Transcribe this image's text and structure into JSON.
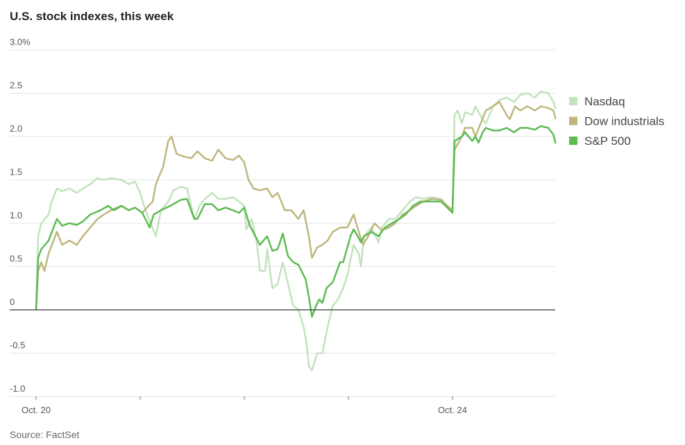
{
  "chart_data": {
    "type": "line",
    "title": "U.S. stock indexes, this week",
    "source": "Source: FactSet",
    "xlabel": "",
    "ylabel": "",
    "xlim": [
      0,
      5
    ],
    "ylim": [
      -1.0,
      3.0
    ],
    "x_unit": "trading days since Oct. 20 open",
    "x_ticks": [
      {
        "value": 0,
        "label": "Oct. 20"
      },
      {
        "value": 1,
        "label": ""
      },
      {
        "value": 2,
        "label": ""
      },
      {
        "value": 3,
        "label": ""
      },
      {
        "value": 4,
        "label": "Oct. 24"
      }
    ],
    "y_ticks": [
      {
        "value": 3.0,
        "label": "3.0%"
      },
      {
        "value": 2.5,
        "label": "2.5"
      },
      {
        "value": 2.0,
        "label": "2.0"
      },
      {
        "value": 1.5,
        "label": "1.5"
      },
      {
        "value": 1.0,
        "label": "1.0"
      },
      {
        "value": 0.5,
        "label": "0.5"
      },
      {
        "value": 0,
        "label": "0"
      },
      {
        "value": -0.5,
        "label": "-0.5"
      },
      {
        "value": -1.0,
        "label": "-1.0"
      }
    ],
    "grid": true,
    "legend_position": "right",
    "series": [
      {
        "name": "Nasdaq",
        "color": "#c2e3bd",
        "points": [
          [
            0,
            0
          ],
          [
            0.02,
            0.85
          ],
          [
            0.05,
            1.0
          ],
          [
            0.12,
            1.1
          ],
          [
            0.15,
            1.25
          ],
          [
            0.2,
            1.4
          ],
          [
            0.25,
            1.37
          ],
          [
            0.32,
            1.4
          ],
          [
            0.39,
            1.35
          ],
          [
            0.45,
            1.4
          ],
          [
            0.52,
            1.45
          ],
          [
            0.59,
            1.52
          ],
          [
            0.65,
            1.5
          ],
          [
            0.72,
            1.52
          ],
          [
            0.82,
            1.5
          ],
          [
            0.89,
            1.45
          ],
          [
            0.95,
            1.48
          ],
          [
            1.0,
            1.35
          ],
          [
            1.05,
            1.15
          ],
          [
            1.1,
            1.0
          ],
          [
            1.15,
            0.85
          ],
          [
            1.2,
            1.15
          ],
          [
            1.27,
            1.25
          ],
          [
            1.32,
            1.38
          ],
          [
            1.39,
            1.42
          ],
          [
            1.45,
            1.4
          ],
          [
            1.52,
            1.05
          ],
          [
            1.57,
            1.2
          ],
          [
            1.62,
            1.28
          ],
          [
            1.69,
            1.35
          ],
          [
            1.75,
            1.28
          ],
          [
            1.82,
            1.28
          ],
          [
            1.89,
            1.3
          ],
          [
            1.95,
            1.25
          ],
          [
            2.0,
            1.2
          ],
          [
            2.02,
            0.93
          ],
          [
            2.07,
            1.05
          ],
          [
            2.12,
            0.78
          ],
          [
            2.15,
            0.45
          ],
          [
            2.2,
            0.45
          ],
          [
            2.22,
            0.7
          ],
          [
            2.27,
            0.25
          ],
          [
            2.32,
            0.3
          ],
          [
            2.37,
            0.55
          ],
          [
            2.42,
            0.3
          ],
          [
            2.47,
            0.05
          ],
          [
            2.52,
            0.0
          ],
          [
            2.57,
            -0.2
          ],
          [
            2.6,
            -0.4
          ],
          [
            2.62,
            -0.65
          ],
          [
            2.65,
            -0.7
          ],
          [
            2.7,
            -0.5
          ],
          [
            2.75,
            -0.5
          ],
          [
            2.8,
            -0.2
          ],
          [
            2.85,
            0.05
          ],
          [
            2.89,
            0.1
          ],
          [
            2.95,
            0.25
          ],
          [
            2.99,
            0.4
          ],
          [
            3.05,
            0.75
          ],
          [
            3.1,
            0.65
          ],
          [
            3.12,
            0.5
          ],
          [
            3.15,
            0.85
          ],
          [
            3.22,
            0.95
          ],
          [
            3.29,
            0.78
          ],
          [
            3.32,
            0.95
          ],
          [
            3.39,
            1.05
          ],
          [
            3.45,
            1.05
          ],
          [
            3.52,
            1.15
          ],
          [
            3.59,
            1.25
          ],
          [
            3.65,
            1.3
          ],
          [
            3.72,
            1.28
          ],
          [
            3.8,
            1.3
          ],
          [
            3.89,
            1.28
          ],
          [
            3.95,
            1.2
          ],
          [
            4.0,
            1.15
          ],
          [
            4.02,
            2.25
          ],
          [
            4.05,
            2.3
          ],
          [
            4.09,
            2.15
          ],
          [
            4.12,
            2.28
          ],
          [
            4.19,
            2.25
          ],
          [
            4.22,
            2.35
          ],
          [
            4.29,
            2.2
          ],
          [
            4.32,
            2.15
          ],
          [
            4.39,
            2.35
          ],
          [
            4.45,
            2.42
          ],
          [
            4.52,
            2.45
          ],
          [
            4.59,
            2.4
          ],
          [
            4.65,
            2.48
          ],
          [
            4.72,
            2.5
          ],
          [
            4.79,
            2.45
          ],
          [
            4.85,
            2.52
          ],
          [
            4.92,
            2.5
          ],
          [
            4.97,
            2.4
          ],
          [
            4.99,
            2.32
          ]
        ]
      },
      {
        "name": "Dow industrials",
        "color": "#bfb67e",
        "points": [
          [
            0,
            0
          ],
          [
            0.02,
            0.45
          ],
          [
            0.05,
            0.55
          ],
          [
            0.08,
            0.45
          ],
          [
            0.12,
            0.65
          ],
          [
            0.2,
            0.9
          ],
          [
            0.25,
            0.75
          ],
          [
            0.32,
            0.8
          ],
          [
            0.39,
            0.75
          ],
          [
            0.45,
            0.85
          ],
          [
            0.52,
            0.95
          ],
          [
            0.59,
            1.05
          ],
          [
            0.65,
            1.1
          ],
          [
            0.72,
            1.15
          ],
          [
            0.82,
            1.2
          ],
          [
            0.89,
            1.15
          ],
          [
            0.95,
            1.18
          ],
          [
            1.02,
            1.12
          ],
          [
            1.08,
            1.2
          ],
          [
            1.12,
            1.25
          ],
          [
            1.15,
            1.45
          ],
          [
            1.22,
            1.65
          ],
          [
            1.27,
            1.95
          ],
          [
            1.3,
            2.0
          ],
          [
            1.35,
            1.8
          ],
          [
            1.42,
            1.77
          ],
          [
            1.49,
            1.75
          ],
          [
            1.55,
            1.83
          ],
          [
            1.62,
            1.75
          ],
          [
            1.69,
            1.72
          ],
          [
            1.75,
            1.85
          ],
          [
            1.82,
            1.75
          ],
          [
            1.89,
            1.73
          ],
          [
            1.95,
            1.78
          ],
          [
            2.0,
            1.7
          ],
          [
            2.04,
            1.5
          ],
          [
            2.09,
            1.4
          ],
          [
            2.15,
            1.38
          ],
          [
            2.22,
            1.4
          ],
          [
            2.27,
            1.3
          ],
          [
            2.32,
            1.35
          ],
          [
            2.39,
            1.15
          ],
          [
            2.45,
            1.15
          ],
          [
            2.52,
            1.05
          ],
          [
            2.57,
            1.15
          ],
          [
            2.62,
            0.85
          ],
          [
            2.65,
            0.6
          ],
          [
            2.7,
            0.72
          ],
          [
            2.75,
            0.75
          ],
          [
            2.8,
            0.8
          ],
          [
            2.85,
            0.9
          ],
          [
            2.92,
            0.95
          ],
          [
            2.99,
            0.95
          ],
          [
            3.05,
            1.1
          ],
          [
            3.1,
            0.9
          ],
          [
            3.14,
            0.75
          ],
          [
            3.19,
            0.85
          ],
          [
            3.25,
            1.0
          ],
          [
            3.32,
            0.92
          ],
          [
            3.39,
            0.95
          ],
          [
            3.45,
            1.0
          ],
          [
            3.52,
            1.1
          ],
          [
            3.59,
            1.15
          ],
          [
            3.65,
            1.2
          ],
          [
            3.72,
            1.25
          ],
          [
            3.8,
            1.28
          ],
          [
            3.89,
            1.27
          ],
          [
            3.95,
            1.2
          ],
          [
            4.0,
            1.15
          ],
          [
            4.02,
            1.85
          ],
          [
            4.09,
            2.0
          ],
          [
            4.12,
            2.1
          ],
          [
            4.19,
            2.1
          ],
          [
            4.22,
            2.0
          ],
          [
            4.27,
            2.15
          ],
          [
            4.32,
            2.3
          ],
          [
            4.39,
            2.35
          ],
          [
            4.45,
            2.4
          ],
          [
            4.52,
            2.25
          ],
          [
            4.55,
            2.2
          ],
          [
            4.6,
            2.35
          ],
          [
            4.65,
            2.3
          ],
          [
            4.72,
            2.35
          ],
          [
            4.79,
            2.3
          ],
          [
            4.85,
            2.35
          ],
          [
            4.92,
            2.33
          ],
          [
            4.97,
            2.3
          ],
          [
            4.99,
            2.2
          ]
        ]
      },
      {
        "name": "S&P 500",
        "color": "#5dbb52",
        "points": [
          [
            0,
            0
          ],
          [
            0.02,
            0.6
          ],
          [
            0.05,
            0.7
          ],
          [
            0.12,
            0.8
          ],
          [
            0.2,
            1.05
          ],
          [
            0.25,
            0.97
          ],
          [
            0.32,
            1.0
          ],
          [
            0.39,
            0.98
          ],
          [
            0.45,
            1.02
          ],
          [
            0.52,
            1.1
          ],
          [
            0.62,
            1.15
          ],
          [
            0.69,
            1.2
          ],
          [
            0.75,
            1.15
          ],
          [
            0.82,
            1.2
          ],
          [
            0.89,
            1.15
          ],
          [
            0.95,
            1.18
          ],
          [
            1.02,
            1.12
          ],
          [
            1.07,
            1.0
          ],
          [
            1.09,
            0.95
          ],
          [
            1.13,
            1.1
          ],
          [
            1.2,
            1.15
          ],
          [
            1.29,
            1.2
          ],
          [
            1.39,
            1.27
          ],
          [
            1.45,
            1.28
          ],
          [
            1.52,
            1.05
          ],
          [
            1.55,
            1.05
          ],
          [
            1.62,
            1.22
          ],
          [
            1.69,
            1.22
          ],
          [
            1.75,
            1.15
          ],
          [
            1.82,
            1.18
          ],
          [
            1.89,
            1.15
          ],
          [
            1.95,
            1.12
          ],
          [
            2.0,
            1.18
          ],
          [
            2.05,
            0.98
          ],
          [
            2.15,
            0.75
          ],
          [
            2.22,
            0.85
          ],
          [
            2.27,
            0.68
          ],
          [
            2.32,
            0.7
          ],
          [
            2.37,
            0.88
          ],
          [
            2.42,
            0.62
          ],
          [
            2.47,
            0.55
          ],
          [
            2.52,
            0.52
          ],
          [
            2.59,
            0.35
          ],
          [
            2.62,
            0.15
          ],
          [
            2.65,
            -0.08
          ],
          [
            2.69,
            0.05
          ],
          [
            2.72,
            0.12
          ],
          [
            2.75,
            0.08
          ],
          [
            2.79,
            0.25
          ],
          [
            2.85,
            0.32
          ],
          [
            2.89,
            0.45
          ],
          [
            2.92,
            0.55
          ],
          [
            2.95,
            0.55
          ],
          [
            3.02,
            0.85
          ],
          [
            3.05,
            0.93
          ],
          [
            3.09,
            0.85
          ],
          [
            3.12,
            0.78
          ],
          [
            3.15,
            0.85
          ],
          [
            3.22,
            0.9
          ],
          [
            3.29,
            0.85
          ],
          [
            3.35,
            0.95
          ],
          [
            3.42,
            1.0
          ],
          [
            3.49,
            1.05
          ],
          [
            3.55,
            1.1
          ],
          [
            3.62,
            1.2
          ],
          [
            3.69,
            1.25
          ],
          [
            3.75,
            1.25
          ],
          [
            3.82,
            1.25
          ],
          [
            3.89,
            1.25
          ],
          [
            3.95,
            1.18
          ],
          [
            4.0,
            1.12
          ],
          [
            4.02,
            1.95
          ],
          [
            4.09,
            2.0
          ],
          [
            4.12,
            2.05
          ],
          [
            4.19,
            1.95
          ],
          [
            4.22,
            2.0
          ],
          [
            4.25,
            1.93
          ],
          [
            4.29,
            2.05
          ],
          [
            4.32,
            2.1
          ],
          [
            4.39,
            2.07
          ],
          [
            4.45,
            2.07
          ],
          [
            4.52,
            2.1
          ],
          [
            4.59,
            2.05
          ],
          [
            4.65,
            2.1
          ],
          [
            4.72,
            2.1
          ],
          [
            4.79,
            2.08
          ],
          [
            4.85,
            2.12
          ],
          [
            4.92,
            2.1
          ],
          [
            4.97,
            2.02
          ],
          [
            4.99,
            1.92
          ]
        ]
      }
    ]
  }
}
